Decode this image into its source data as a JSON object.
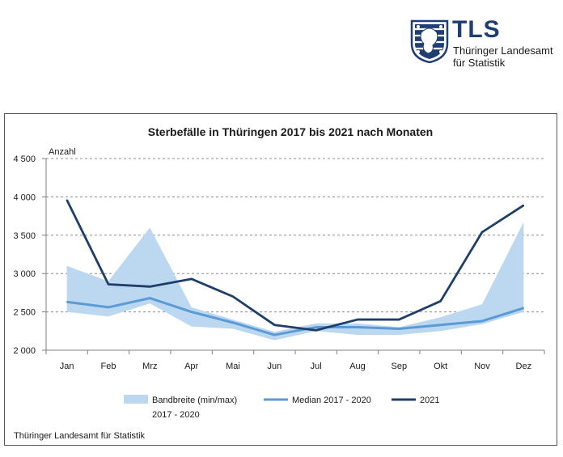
{
  "logo": {
    "abbr": "TLS",
    "line1": "Thüringer Landesamt",
    "line2": "für Statistik",
    "crest_icon": "thuringia-crest-icon",
    "brand_color": "#1f3f73"
  },
  "footer": {
    "source": "Thüringer Landesamt für Statistik"
  },
  "chart_data": {
    "type": "line",
    "title": "Sterbefälle in Thüringen 2017 bis 2021 nach Monaten",
    "ylabel": "Anzahl",
    "xlabel": "",
    "ylim": [
      2000,
      4500
    ],
    "yticks": [
      2000,
      2500,
      3000,
      3500,
      4000,
      4500
    ],
    "ytick_labels": [
      "2 000",
      "2 500",
      "3 000",
      "3 500",
      "4 000",
      "4 500"
    ],
    "grid": "horizontal dashed",
    "legend_position": "bottom",
    "categories": [
      "Jan",
      "Feb",
      "Mrz",
      "Apr",
      "Mai",
      "Jun",
      "Jul",
      "Aug",
      "Sep",
      "Okt",
      "Nov",
      "Dez"
    ],
    "band": {
      "name": "Bandbreite (min/max) 2017 - 2020",
      "legend_line1": "Bandbreite (min/max)",
      "legend_line2": "2017 - 2020",
      "color": "#bcd7f0",
      "min": [
        2500,
        2440,
        2610,
        2310,
        2280,
        2130,
        2250,
        2200,
        2200,
        2250,
        2340,
        2500
      ],
      "max": [
        3100,
        2900,
        3600,
        2560,
        2400,
        2240,
        2350,
        2350,
        2300,
        2430,
        2600,
        3670
      ]
    },
    "series": [
      {
        "name": "Median 2017 - 2020",
        "color": "#5b9bd5",
        "values": [
          2630,
          2560,
          2680,
          2500,
          2360,
          2200,
          2300,
          2300,
          2280,
          2330,
          2380,
          2550
        ]
      },
      {
        "name": "2021",
        "color": "#1f3f6a",
        "values": [
          3960,
          2860,
          2830,
          2930,
          2700,
          2330,
          2260,
          2400,
          2400,
          2640,
          3540,
          3890
        ]
      }
    ]
  }
}
